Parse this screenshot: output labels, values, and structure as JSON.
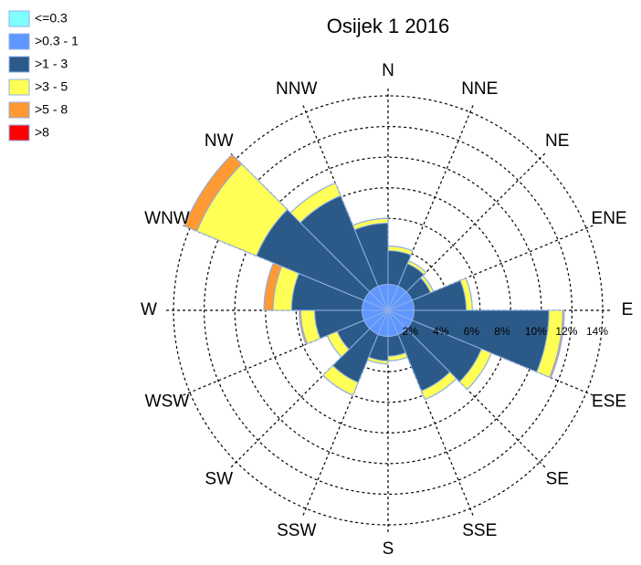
{
  "chart_data": {
    "type": "wind_rose",
    "title": "Osijek 1 2016",
    "directions": [
      "N",
      "NNE",
      "NE",
      "ENE",
      "E",
      "ESE",
      "SE",
      "SSE",
      "S",
      "SSW",
      "SW",
      "WSW",
      "W",
      "WNW",
      "NW",
      "NNW"
    ],
    "series": [
      {
        "name": "<=0.3",
        "color": "#80ffff",
        "values": [
          0.1,
          0.1,
          0.1,
          0.1,
          0.1,
          0.1,
          0.1,
          0.1,
          0.1,
          0.1,
          0.1,
          0.1,
          0.1,
          0.1,
          0.1,
          0.1
        ]
      },
      {
        "name": ">0.3 - 1",
        "color": "#5f97ff",
        "values": [
          1.6,
          1.6,
          1.6,
          1.6,
          1.6,
          1.6,
          1.6,
          1.6,
          1.6,
          1.6,
          1.6,
          1.6,
          1.6,
          1.6,
          1.6,
          1.6
        ]
      },
      {
        "name": ">1 - 3",
        "color": "#2b5a88",
        "values": [
          2.2,
          1.6,
          1.3,
          3.4,
          8.8,
          4.9,
          4.0,
          1.3,
          1.6,
          3.4,
          1.9,
          3.1,
          4.6,
          7.6,
          6.4,
          4.0
        ]
      },
      {
        "name": ">3 - 5",
        "color": "#ffff55",
        "values": [
          0.3,
          0.2,
          0.2,
          0.4,
          0.9,
          0.7,
          0.6,
          0.3,
          0.2,
          0.9,
          0.7,
          0.9,
          1.2,
          4.2,
          0.9,
          0.3
        ]
      },
      {
        "name": ">5 - 8",
        "color": "#ff9933",
        "values": [
          0,
          0,
          0,
          0,
          0.1,
          0,
          0,
          0,
          0,
          0,
          0,
          0.1,
          0.6,
          0.9,
          0,
          0
        ]
      },
      {
        "name": ">8",
        "color": "#ff0000",
        "values": [
          0,
          0,
          0,
          0,
          0,
          0,
          0,
          0,
          0,
          0,
          0,
          0,
          0,
          0,
          0,
          0
        ]
      }
    ],
    "rlim": [
      0,
      14
    ],
    "rticks": [
      {
        "value": 2,
        "label": "2%"
      },
      {
        "value": 4,
        "label": "4%"
      },
      {
        "value": 6,
        "label": "6%"
      },
      {
        "value": 8,
        "label": "8%"
      },
      {
        "value": 10,
        "label": "10%"
      },
      {
        "value": 12,
        "label": "12%"
      },
      {
        "value": 14,
        "label": "14%"
      }
    ],
    "legend": "top-left"
  }
}
